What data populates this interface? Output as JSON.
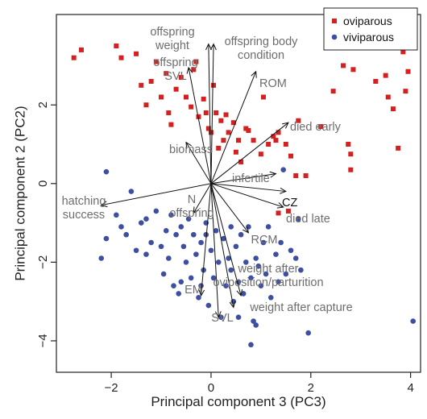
{
  "chart_data": {
    "type": "scatter",
    "title": "",
    "xlabel": "Principal component 3 (PC3)",
    "ylabel": "Principal component 2 (PC2)",
    "xlim": [
      -3.1,
      4.2
    ],
    "ylim": [
      -4.8,
      4.3
    ],
    "x_ticks": [
      -2,
      0,
      2,
      4
    ],
    "y_ticks": [
      -4,
      -2,
      0,
      2
    ],
    "x_tick_labels": [
      "−2",
      "0",
      "2",
      "4"
    ],
    "y_tick_labels": [
      "−4",
      "−2",
      "0",
      "2"
    ],
    "grid": false,
    "legend_position": "top-right",
    "series": [
      {
        "name": "oviparous",
        "marker": "square",
        "color": "#d42020",
        "points": [
          [
            -2.75,
            3.2
          ],
          [
            -2.6,
            3.4
          ],
          [
            -1.9,
            3.5
          ],
          [
            -1.8,
            3.2
          ],
          [
            -1.5,
            3.3
          ],
          [
            -1.4,
            2.5
          ],
          [
            -1.3,
            2.0
          ],
          [
            -1.2,
            2.6
          ],
          [
            -1.1,
            3.1
          ],
          [
            -1.0,
            2.2
          ],
          [
            -0.9,
            2.8
          ],
          [
            -0.85,
            1.8
          ],
          [
            -0.7,
            2.4
          ],
          [
            -0.6,
            2.7
          ],
          [
            -0.5,
            2.2
          ],
          [
            -0.4,
            1.95
          ],
          [
            -0.35,
            2.9
          ],
          [
            -0.3,
            3.1
          ],
          [
            -0.25,
            1.7
          ],
          [
            -0.15,
            2.15
          ],
          [
            -0.1,
            1.8
          ],
          [
            -0.05,
            1.4
          ],
          [
            0.0,
            1.3
          ],
          [
            0.05,
            2.5
          ],
          [
            0.1,
            1.8
          ],
          [
            0.15,
            0.9
          ],
          [
            0.2,
            1.6
          ],
          [
            0.25,
            1.1
          ],
          [
            0.3,
            1.75
          ],
          [
            0.35,
            1.3
          ],
          [
            0.45,
            1.55
          ],
          [
            0.5,
            0.8
          ],
          [
            0.55,
            1.1
          ],
          [
            0.6,
            0.55
          ],
          [
            0.7,
            1.4
          ],
          [
            0.75,
            1.35
          ],
          [
            0.85,
            1.1
          ],
          [
            1.0,
            0.75
          ],
          [
            1.05,
            2.2
          ],
          [
            1.15,
            1.0
          ],
          [
            1.25,
            1.2
          ],
          [
            1.3,
            1.1
          ],
          [
            1.35,
            1.3
          ],
          [
            1.5,
            1.0
          ],
          [
            1.6,
            0.7
          ],
          [
            1.7,
            0.2
          ],
          [
            1.75,
            1.6
          ],
          [
            2.2,
            1.45
          ],
          [
            2.45,
            2.35
          ],
          [
            2.65,
            3.0
          ],
          [
            2.75,
            1.0
          ],
          [
            2.8,
            0.75
          ],
          [
            2.8,
            0.35
          ],
          [
            2.85,
            2.9
          ],
          [
            3.3,
            2.6
          ],
          [
            3.5,
            2.75
          ],
          [
            3.55,
            2.2
          ],
          [
            3.65,
            1.9
          ],
          [
            3.75,
            0.9
          ],
          [
            3.85,
            3.35
          ],
          [
            3.9,
            2.35
          ],
          [
            3.95,
            2.85
          ],
          [
            1.9,
            0.2
          ],
          [
            1.55,
            -0.7
          ],
          [
            -0.8,
            1.5
          ],
          [
            1.35,
            -0.75
          ]
        ]
      },
      {
        "name": "viviparous",
        "marker": "circle",
        "color": "#3e4ea0",
        "points": [
          [
            -2.1,
            0.3
          ],
          [
            -2.2,
            -1.9
          ],
          [
            -2.1,
            -1.4
          ],
          [
            -1.9,
            -0.8
          ],
          [
            -1.8,
            -1.1
          ],
          [
            -1.6,
            -0.2
          ],
          [
            -1.5,
            -1.7
          ],
          [
            -1.4,
            -1.0
          ],
          [
            -1.3,
            -0.9
          ],
          [
            -1.2,
            -1.5
          ],
          [
            -1.1,
            -0.7
          ],
          [
            -1.0,
            -1.6
          ],
          [
            -0.95,
            -2.3
          ],
          [
            -0.9,
            -1.2
          ],
          [
            -0.85,
            -1.9
          ],
          [
            -0.8,
            -0.8
          ],
          [
            -0.75,
            -2.6
          ],
          [
            -0.7,
            -1.3
          ],
          [
            -0.65,
            -2.8
          ],
          [
            -0.6,
            -1.1
          ],
          [
            -0.55,
            -1.6
          ],
          [
            -0.5,
            -2.0
          ],
          [
            -0.45,
            -0.9
          ],
          [
            -0.4,
            -2.4
          ],
          [
            -0.35,
            -1.3
          ],
          [
            -0.3,
            -1.8
          ],
          [
            -0.25,
            -2.9
          ],
          [
            -0.2,
            -1.5
          ],
          [
            -0.15,
            -2.2
          ],
          [
            -0.1,
            -1.0
          ],
          [
            -0.05,
            -3.1
          ],
          [
            0.0,
            -1.7
          ],
          [
            0.05,
            -2.4
          ],
          [
            0.1,
            -1.2
          ],
          [
            0.15,
            -2.0
          ],
          [
            0.2,
            -3.4
          ],
          [
            0.25,
            -1.4
          ],
          [
            0.3,
            -2.6
          ],
          [
            0.35,
            -1.9
          ],
          [
            0.4,
            -2.2
          ],
          [
            0.45,
            -3.0
          ],
          [
            0.5,
            -1.6
          ],
          [
            0.55,
            -2.5
          ],
          [
            0.6,
            -1.3
          ],
          [
            0.65,
            -2.8
          ],
          [
            0.7,
            -2.0
          ],
          [
            0.75,
            -1.1
          ],
          [
            0.8,
            -2.4
          ],
          [
            0.85,
            -3.5
          ],
          [
            0.9,
            -1.9
          ],
          [
            0.95,
            -2.1
          ],
          [
            1.0,
            -2.6
          ],
          [
            1.05,
            -1.5
          ],
          [
            1.1,
            -2.3
          ],
          [
            1.2,
            -2.9
          ],
          [
            1.3,
            -1.8
          ],
          [
            1.35,
            -2.5
          ],
          [
            1.4,
            -1.5
          ],
          [
            1.5,
            -2.3
          ],
          [
            1.6,
            -1.7
          ],
          [
            1.7,
            -1.9
          ],
          [
            1.75,
            -0.9
          ],
          [
            1.8,
            -2.2
          ],
          [
            1.95,
            -3.8
          ],
          [
            0.8,
            -4.1
          ],
          [
            0.9,
            -3.6
          ],
          [
            4.05,
            -3.5
          ],
          [
            1.45,
            0.35
          ],
          [
            -1.3,
            -1.8
          ],
          [
            -0.6,
            -2.5
          ],
          [
            -0.1,
            -1.3
          ],
          [
            0.4,
            -1.1
          ],
          [
            1.15,
            -1.1
          ],
          [
            0.55,
            -3.4
          ],
          [
            -1.7,
            -1.3
          ],
          [
            -0.2,
            -2.6
          ]
        ]
      }
    ],
    "loadings": [
      {
        "label": "offspring\nweight",
        "x": -0.05,
        "y": 3.55,
        "color": "gray"
      },
      {
        "label": "offspring body\ncondition",
        "x": 0.05,
        "y": 3.55,
        "color": "gray"
      },
      {
        "label": "offspring\nSVL",
        "x": -0.45,
        "y": 2.95,
        "color": "gray"
      },
      {
        "label": "ROM",
        "x": 0.9,
        "y": 2.85,
        "color": "gray"
      },
      {
        "label": "died early",
        "x": 1.55,
        "y": 1.55,
        "color": "gray"
      },
      {
        "label": "biomass",
        "x": -0.5,
        "y": 1.05,
        "color": "gray"
      },
      {
        "label": "infertile",
        "x": 1.3,
        "y": 0.25,
        "color": "gray"
      },
      {
        "label": "CZ",
        "x": 1.5,
        "y": -0.2,
        "color": "black"
      },
      {
        "label": "died late",
        "x": 1.45,
        "y": -0.6,
        "color": "gray"
      },
      {
        "label": "hatching\nsuccess",
        "x": -2.2,
        "y": -0.55,
        "color": "gray"
      },
      {
        "label": "N\noffspring",
        "x": -0.35,
        "y": -0.75,
        "color": "gray"
      },
      {
        "label": "RCM",
        "x": 0.75,
        "y": -1.25,
        "color": "gray"
      },
      {
        "label": "weight after\noviposition/parturition",
        "x": 0.6,
        "y": -2.85,
        "color": "gray"
      },
      {
        "label": "EM",
        "x": -0.2,
        "y": -2.85,
        "color": "gray"
      },
      {
        "label": "weight after capture",
        "x": 0.45,
        "y": -3.15,
        "color": "gray"
      },
      {
        "label": "SVL",
        "x": 0.15,
        "y": -3.4,
        "color": "gray"
      }
    ]
  }
}
